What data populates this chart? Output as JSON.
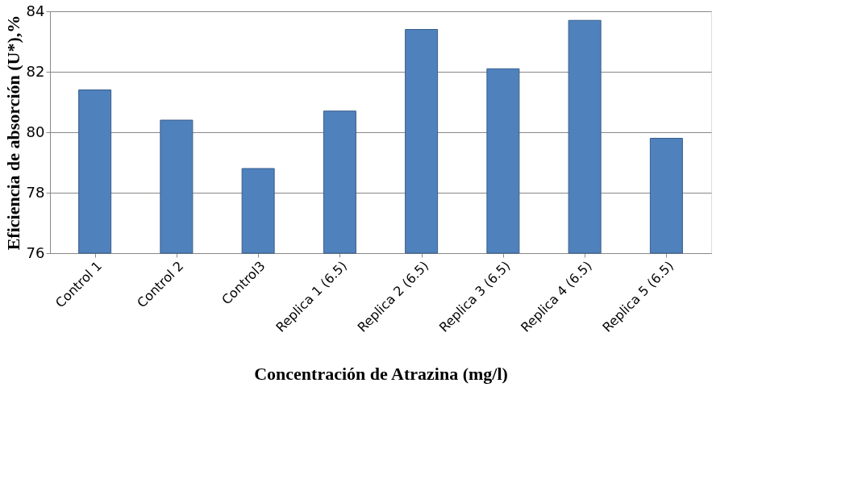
{
  "chart_data": {
    "type": "bar",
    "xlabel": "Concentración de Atrazina (mg/l)",
    "ylabel": "Eficiencia de absorción (U*),%",
    "categories": [
      "Control 1",
      "Control 2",
      "Control3",
      "Replica 1   (6.5)",
      "Replica 2   (6.5)",
      "Replica 3   (6.5)",
      "Replica 4     (6.5)",
      "Replica 5     (6.5)"
    ],
    "values": [
      81.4,
      80.4,
      78.8,
      80.7,
      83.4,
      82.1,
      83.7,
      79.8
    ],
    "color": "#4f81bd",
    "ylim": [
      76,
      84
    ],
    "yticks": [
      76,
      78,
      80,
      82,
      84
    ],
    "grid": "y"
  }
}
